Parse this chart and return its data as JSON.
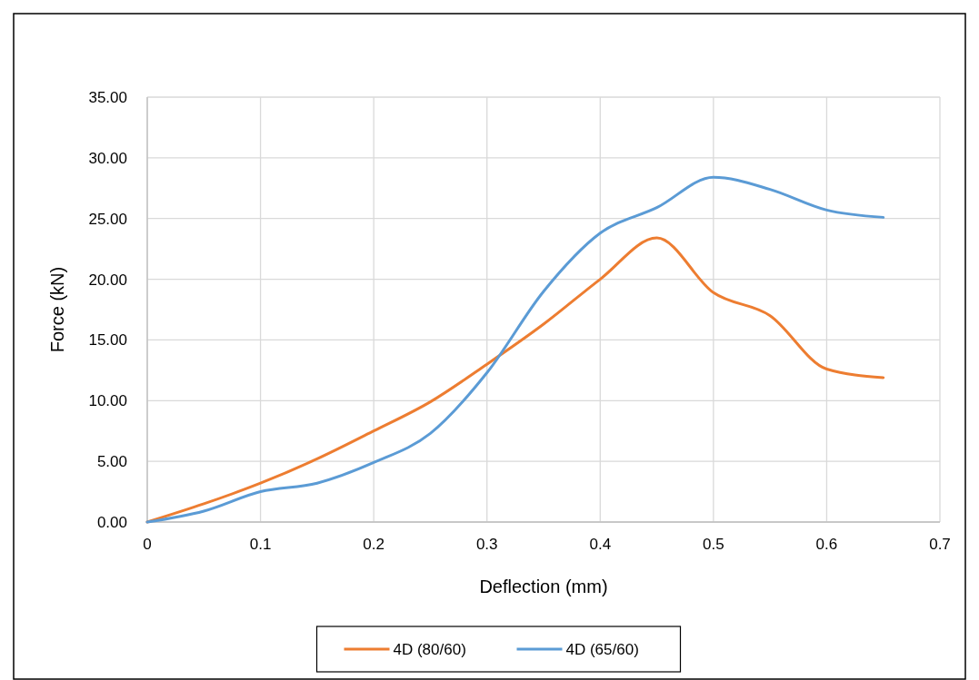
{
  "chart_data": {
    "type": "line",
    "xlabel": "Deflection (mm)",
    "ylabel": "Force (kN)",
    "x": [
      0,
      0.05,
      0.1,
      0.15,
      0.2,
      0.25,
      0.3,
      0.35,
      0.4,
      0.45,
      0.5,
      0.55,
      0.6,
      0.65
    ],
    "series": [
      {
        "name": "4D (80/60)",
        "color": "#ed7d31",
        "values": [
          0,
          1.5,
          3.2,
          5.2,
          7.5,
          9.9,
          13.0,
          16.3,
          20.0,
          23.4,
          18.9,
          17.0,
          12.6,
          11.9
        ]
      },
      {
        "name": "4D (65/60)",
        "color": "#5b9bd5",
        "values": [
          0,
          0.9,
          2.5,
          3.2,
          4.9,
          7.3,
          12.3,
          19.0,
          23.8,
          25.9,
          28.4,
          27.4,
          25.7,
          25.1
        ]
      }
    ],
    "xlim": [
      0,
      0.7
    ],
    "xticks": [
      0,
      0.1,
      0.2,
      0.3,
      0.4,
      0.5,
      0.6,
      0.7
    ],
    "ylim": [
      0,
      35
    ],
    "yticks": [
      {
        "value": 0,
        "label": "0.00"
      },
      {
        "value": 5,
        "label": "5.00"
      },
      {
        "value": 10,
        "label": "10.00"
      },
      {
        "value": 15,
        "label": "15.00"
      },
      {
        "value": 20,
        "label": "20.00"
      },
      {
        "value": 25,
        "label": "25.00"
      },
      {
        "value": 30,
        "label": "30.00"
      },
      {
        "value": 35,
        "label": "35.00"
      }
    ],
    "grid": true,
    "legend": "bottom",
    "marker": "none",
    "line_style": "solid"
  }
}
